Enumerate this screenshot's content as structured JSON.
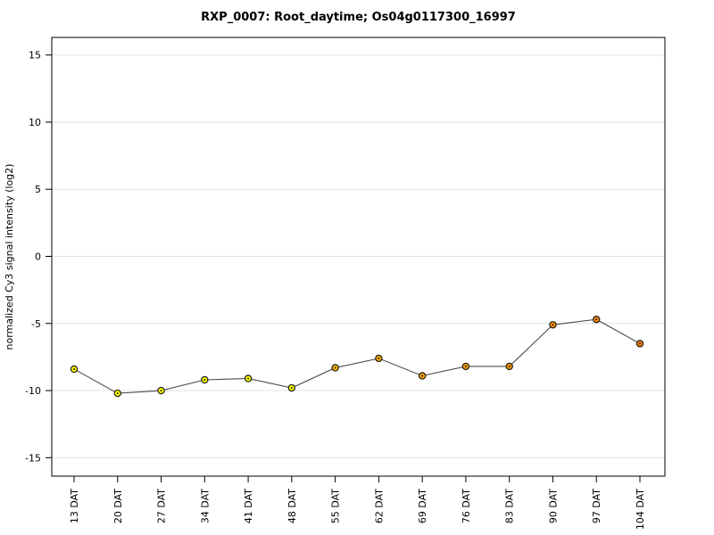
{
  "title": "RXP_0007: Root_daytime; Os04g0117300_16997",
  "chart_data": {
    "type": "line",
    "title": "RXP_0007: Root_daytime; Os04g0117300_16997",
    "xlabel": "",
    "ylabel": "normalized Cy3 signal intensity (log2)",
    "categories": [
      "13 DAT",
      "20 DAT",
      "27 DAT",
      "34 DAT",
      "41 DAT",
      "48 DAT",
      "55 DAT",
      "62 DAT",
      "69 DAT",
      "76 DAT",
      "83 DAT",
      "90 DAT",
      "97 DAT",
      "104 DAT"
    ],
    "values": [
      -8.4,
      -10.2,
      -10.0,
      -9.2,
      -9.1,
      -9.8,
      -8.3,
      -7.6,
      -8.9,
      -8.2,
      -8.2,
      -5.1,
      -4.7,
      -6.5
    ],
    "point_colors": [
      "#ffff00",
      "#ffff00",
      "#ffff00",
      "#ffff00",
      "#ffff00",
      "#ffff00",
      "#ffbf00",
      "#ffaa00",
      "#ffa300",
      "#ff9e00",
      "#ff9900",
      "#ff8f00",
      "#ff8a00",
      "#ff8000"
    ],
    "yticks": [
      -15,
      -10,
      -5,
      0,
      5,
      10,
      15
    ],
    "ylim": [
      -16.4,
      16.3
    ],
    "grid": "horizontal",
    "legend": "none",
    "colors": {
      "line": "#4d4d4d",
      "marker_stroke": "#1a1a1a",
      "marker_center_dot": "#1a1a1a",
      "grid": "#e2e2e2",
      "frame": "#000000",
      "tick": "#000000",
      "text": "#000000",
      "background": "#ffffff"
    }
  }
}
